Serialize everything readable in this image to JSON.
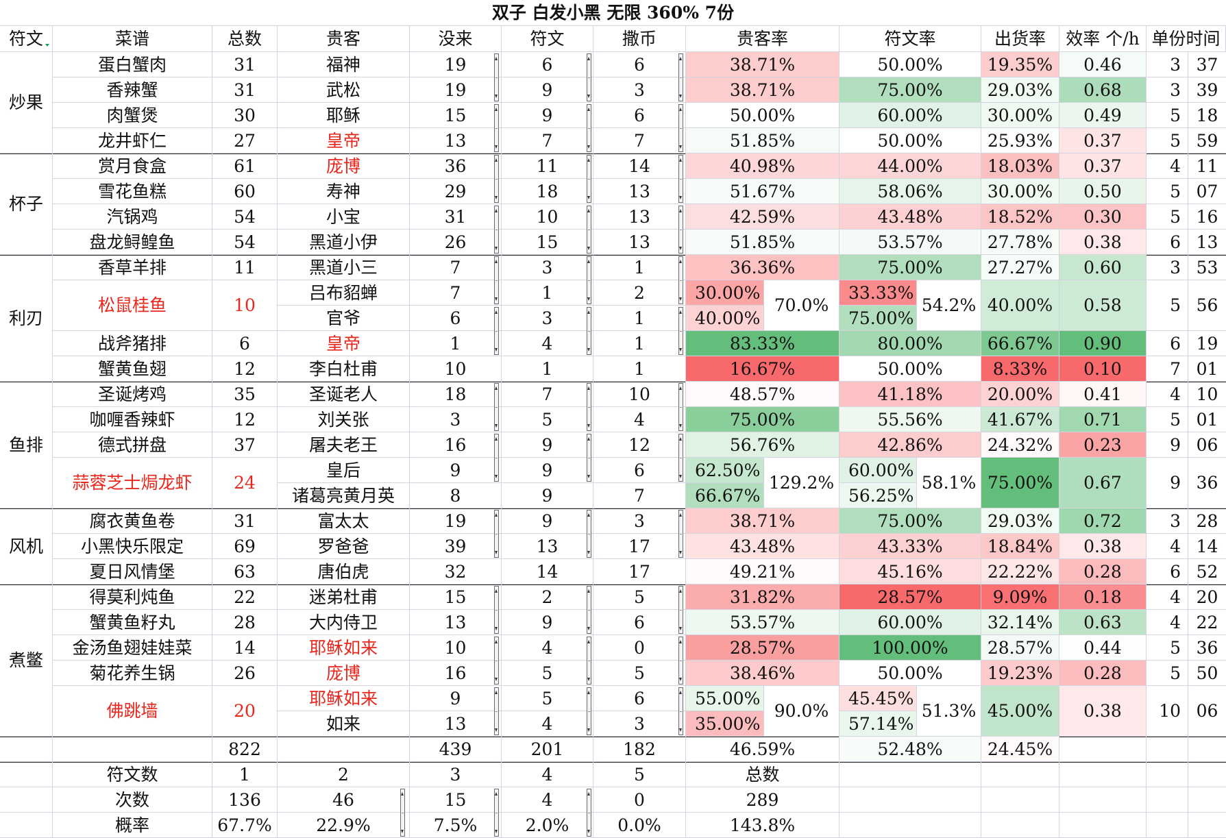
{
  "title": "双子 白发小黑 无限 360% 7份",
  "headers": [
    "符文",
    "菜谱",
    "总数",
    "贵客",
    "没来",
    "符文",
    "撒币",
    "贵客率",
    "符文率",
    "出货率",
    "效率 个/h",
    "单份时间"
  ],
  "groups": [
    {
      "name": "炒果",
      "rows": [
        {
          "dish": "蛋白蟹肉",
          "total": "31",
          "guests": [
            {
              "name": "福神",
              "absent": "19",
              "rune": "6",
              "coin": "6",
              "rate": "38.71%",
              "rune_rate": "50.00%"
            }
          ],
          "yield": "19.35%",
          "eff": "0.46",
          "time_h": "3",
          "time_m": "37"
        },
        {
          "dish": "香辣蟹",
          "total": "31",
          "guests": [
            {
              "name": "武松",
              "absent": "19",
              "rune": "9",
              "coin": "3",
              "rate": "38.71%",
              "rune_rate": "75.00%"
            }
          ],
          "yield": "29.03%",
          "eff": "0.68",
          "time_h": "3",
          "time_m": "39"
        },
        {
          "dish": "肉蟹煲",
          "total": "30",
          "guests": [
            {
              "name": "耶稣",
              "absent": "15",
              "rune": "9",
              "coin": "6",
              "rate": "50.00%",
              "rune_rate": "60.00%"
            }
          ],
          "yield": "30.00%",
          "eff": "0.49",
          "time_h": "5",
          "time_m": "18"
        },
        {
          "dish": "龙井虾仁",
          "total": "27",
          "guests": [
            {
              "name": "皇帝",
              "red": true,
              "absent": "13",
              "rune": "7",
              "coin": "7",
              "rate": "51.85%",
              "rune_rate": "50.00%"
            }
          ],
          "yield": "25.93%",
          "eff": "0.37",
          "time_h": "5",
          "time_m": "59"
        }
      ]
    },
    {
      "name": "杯子",
      "rows": [
        {
          "dish": "赏月食盒",
          "total": "61",
          "guests": [
            {
              "name": "庞博",
              "red": true,
              "absent": "36",
              "rune": "11",
              "coin": "14",
              "rate": "40.98%",
              "rune_rate": "44.00%"
            }
          ],
          "yield": "18.03%",
          "eff": "0.37",
          "time_h": "4",
          "time_m": "11"
        },
        {
          "dish": "雪花鱼糕",
          "total": "60",
          "guests": [
            {
              "name": "寿神",
              "absent": "29",
              "rune": "18",
              "coin": "13",
              "rate": "51.67%",
              "rune_rate": "58.06%"
            }
          ],
          "yield": "30.00%",
          "eff": "0.50",
          "time_h": "5",
          "time_m": "07"
        },
        {
          "dish": "汽锅鸡",
          "total": "54",
          "guests": [
            {
              "name": "小宝",
              "absent": "31",
              "rune": "10",
              "coin": "13",
              "rate": "42.59%",
              "rune_rate": "43.48%"
            }
          ],
          "yield": "18.52%",
          "eff": "0.30",
          "time_h": "5",
          "time_m": "16"
        },
        {
          "dish": "盘龙鲟鳇鱼",
          "total": "54",
          "guests": [
            {
              "name": "黑道小伊",
              "absent": "26",
              "rune": "15",
              "coin": "13",
              "rate": "51.85%",
              "rune_rate": "53.57%"
            }
          ],
          "yield": "27.78%",
          "eff": "0.38",
          "time_h": "6",
          "time_m": "13"
        }
      ]
    },
    {
      "name": "利刃",
      "rows": [
        {
          "dish": "香草羊排",
          "total": "11",
          "guests": [
            {
              "name": "黑道小三",
              "absent": "7",
              "rune": "3",
              "coin": "1",
              "rate": "36.36%",
              "rune_rate": "75.00%"
            }
          ],
          "yield": "27.27%",
          "eff": "0.60",
          "time_h": "3",
          "time_m": "53"
        },
        {
          "dish": "松鼠桂鱼",
          "red": true,
          "total": "10",
          "guests": [
            {
              "name": "吕布貂蝉",
              "absent": "7",
              "rune": "1",
              "coin": "2",
              "rate": "30.00%",
              "rune_rate": "33.33%"
            },
            {
              "name": "官爷",
              "absent": "6",
              "rune": "3",
              "coin": "1",
              "rate": "40.00%",
              "rune_rate": "75.00%"
            }
          ],
          "rate_sum": "70.0%",
          "rune_rate_avg": "54.2%",
          "yield": "40.00%",
          "eff": "0.58",
          "time_h": "5",
          "time_m": "56"
        },
        {
          "dish": "战斧猪排",
          "total": "6",
          "guests": [
            {
              "name": "皇帝",
              "red": true,
              "absent": "1",
              "rune": "4",
              "coin": "1",
              "rate": "83.33%",
              "rune_rate": "80.00%"
            }
          ],
          "yield": "66.67%",
          "eff": "0.90",
          "time_h": "6",
          "time_m": "19"
        },
        {
          "dish": "蟹黄鱼翅",
          "total": "12",
          "guests": [
            {
              "name": "李白杜甫",
              "absent": "10",
              "rune": "1",
              "coin": "1",
              "rate": "16.67%",
              "rune_rate": "50.00%"
            }
          ],
          "yield": "8.33%",
          "eff": "0.10",
          "time_h": "7",
          "time_m": "01"
        }
      ]
    },
    {
      "name": "鱼排",
      "rows": [
        {
          "dish": "圣诞烤鸡",
          "total": "35",
          "guests": [
            {
              "name": "圣诞老人",
              "absent": "18",
              "rune": "7",
              "coin": "10",
              "rate": "48.57%",
              "rune_rate": "41.18%"
            }
          ],
          "yield": "20.00%",
          "eff": "0.41",
          "time_h": "4",
          "time_m": "10"
        },
        {
          "dish": "咖喱香辣虾",
          "total": "12",
          "guests": [
            {
              "name": "刘关张",
              "absent": "3",
              "rune": "5",
              "coin": "4",
              "rate": "75.00%",
              "rune_rate": "55.56%"
            }
          ],
          "yield": "41.67%",
          "eff": "0.71",
          "time_h": "5",
          "time_m": "01"
        },
        {
          "dish": "德式拼盘",
          "total": "37",
          "guests": [
            {
              "name": "屠夫老王",
              "absent": "16",
              "rune": "9",
              "coin": "12",
              "rate": "56.76%",
              "rune_rate": "42.86%"
            }
          ],
          "yield": "24.32%",
          "eff": "0.23",
          "time_h": "9",
          "time_m": "06"
        },
        {
          "dish": "蒜蓉芝士焗龙虾",
          "red": true,
          "total": "24",
          "guests": [
            {
              "name": "皇后",
              "absent": "9",
              "rune": "9",
              "coin": "6",
              "rate": "62.50%",
              "rune_rate": "60.00%"
            },
            {
              "name": "诸葛亮黄月英",
              "absent": "8",
              "rune": "9",
              "coin": "7",
              "rate": "66.67%",
              "rune_rate": "56.25%"
            }
          ],
          "rate_sum": "129.2%",
          "rune_rate_avg": "58.1%",
          "yield": "75.00%",
          "eff": "0.67",
          "time_h": "9",
          "time_m": "36"
        }
      ]
    },
    {
      "name": "风机",
      "rows": [
        {
          "dish": "腐衣黄鱼卷",
          "total": "31",
          "guests": [
            {
              "name": "富太太",
              "absent": "19",
              "rune": "9",
              "coin": "3",
              "rate": "38.71%",
              "rune_rate": "75.00%"
            }
          ],
          "yield": "29.03%",
          "eff": "0.72",
          "time_h": "3",
          "time_m": "28"
        },
        {
          "dish": "小黑快乐限定",
          "total": "69",
          "guests": [
            {
              "name": "罗爸爸",
              "absent": "39",
              "rune": "13",
              "coin": "17",
              "rate": "43.48%",
              "rune_rate": "43.33%"
            }
          ],
          "yield": "18.84%",
          "eff": "0.38",
          "time_h": "4",
          "time_m": "14"
        },
        {
          "dish": "夏日风情堡",
          "total": "63",
          "guests": [
            {
              "name": "唐伯虎",
              "absent": "32",
              "rune": "14",
              "coin": "17",
              "rate": "49.21%",
              "rune_rate": "45.16%"
            }
          ],
          "yield": "22.22%",
          "eff": "0.28",
          "time_h": "6",
          "time_m": "52"
        }
      ]
    },
    {
      "name": "煮鳖",
      "rows": [
        {
          "dish": "得莫利炖鱼",
          "total": "22",
          "guests": [
            {
              "name": "迷弟杜甫",
              "absent": "15",
              "rune": "2",
              "coin": "5",
              "rate": "31.82%",
              "rune_rate": "28.57%"
            }
          ],
          "yield": "9.09%",
          "eff": "0.18",
          "time_h": "4",
          "time_m": "20"
        },
        {
          "dish": "蟹黄鱼籽丸",
          "total": "28",
          "guests": [
            {
              "name": "大内侍卫",
              "absent": "13",
              "rune": "9",
              "coin": "6",
              "rate": "53.57%",
              "rune_rate": "60.00%"
            }
          ],
          "yield": "32.14%",
          "eff": "0.63",
          "time_h": "4",
          "time_m": "22"
        },
        {
          "dish": "金汤鱼翅娃娃菜",
          "total": "14",
          "guests": [
            {
              "name": "耶稣如来",
              "red": true,
              "absent": "10",
              "rune": "4",
              "coin": "0",
              "rate": "28.57%",
              "rune_rate": "100.00%"
            }
          ],
          "yield": "28.57%",
          "eff": "0.44",
          "time_h": "5",
          "time_m": "36"
        },
        {
          "dish": "菊花养生锅",
          "total": "26",
          "guests": [
            {
              "name": "庞博",
              "red": true,
              "absent": "16",
              "rune": "5",
              "coin": "5",
              "rate": "38.46%",
              "rune_rate": "50.00%"
            }
          ],
          "yield": "19.23%",
          "eff": "0.28",
          "time_h": "5",
          "time_m": "50"
        },
        {
          "dish": "佛跳墙",
          "red": true,
          "total": "20",
          "guests": [
            {
              "name": "耶稣如来",
              "red": true,
              "absent": "9",
              "rune": "5",
              "coin": "6",
              "rate": "55.00%",
              "rune_rate": "45.45%"
            },
            {
              "name": "如来",
              "absent": "13",
              "rune": "4",
              "coin": "3",
              "rate": "35.00%",
              "rune_rate": "57.14%"
            }
          ],
          "rate_sum": "90.0%",
          "rune_rate_avg": "51.3%",
          "yield": "45.00%",
          "eff": "0.38",
          "time_h": "10",
          "time_m": "06"
        }
      ]
    }
  ],
  "totals": {
    "total": "822",
    "absent": "439",
    "rune": "201",
    "coin": "182",
    "rate": "46.59%",
    "rune_rate": "52.48%",
    "yield": "24.45%"
  },
  "stats": {
    "header_label": "符文数",
    "headers": [
      "1",
      "2",
      "3",
      "4",
      "5"
    ],
    "total_label": "总数",
    "count_label": "次数",
    "counts": [
      "136",
      "46",
      "15",
      "4",
      "0"
    ],
    "count_total": "289",
    "prob_label": "概率",
    "probs": [
      "67.7%",
      "22.9%",
      "7.5%",
      "2.0%",
      "0.0%"
    ],
    "prob_total": "143.8%"
  },
  "colors": {
    "text_red": "#e8261c",
    "low": "#f8696b",
    "mid": "#ffffff",
    "high": "#63be7b",
    "grid": "#d4d4e0",
    "border": "#222222"
  },
  "scales": {
    "rate": {
      "min": 16.67,
      "mid": 50,
      "max": 83.33
    },
    "rune": {
      "min": 28.57,
      "mid": 50,
      "max": 100
    },
    "yield": {
      "min": 8.33,
      "mid": 25,
      "max": 75
    },
    "eff": {
      "min": 0.1,
      "mid": 0.43,
      "max": 0.9
    }
  }
}
